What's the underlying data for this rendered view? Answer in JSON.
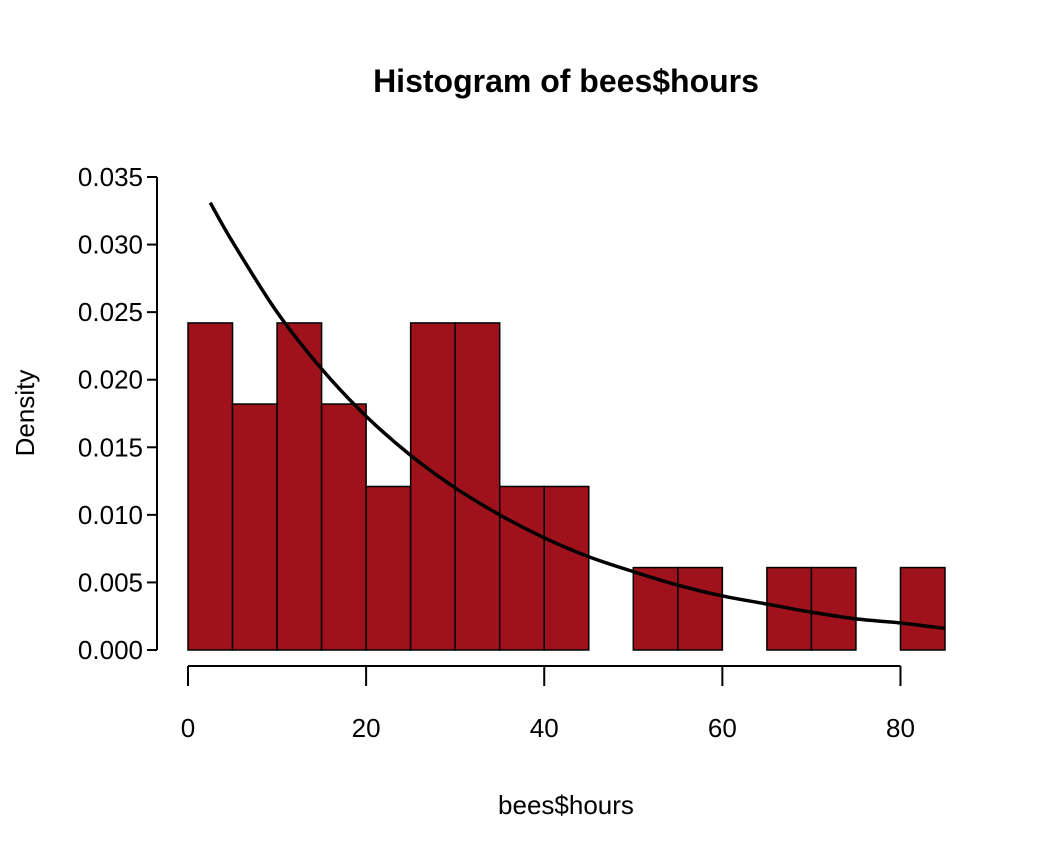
{
  "chart_data": {
    "type": "bar",
    "title": "Histogram of bees$hours",
    "xlabel": "bees$hours",
    "ylabel": "Density",
    "bar_color": "#a0121b",
    "bin_edges": [
      0,
      5,
      10,
      15,
      20,
      25,
      30,
      35,
      40,
      45,
      50,
      55,
      60,
      65,
      70,
      75,
      80,
      85
    ],
    "values": [
      0.0242,
      0.0182,
      0.0242,
      0.0182,
      0.0121,
      0.0242,
      0.0242,
      0.0121,
      0.0121,
      0,
      0.0061,
      0.0061,
      0,
      0.0061,
      0.0061,
      0,
      0.0061
    ],
    "xlim": [
      0,
      85
    ],
    "ylim": [
      0,
      0.035
    ],
    "x_ticks": [
      0,
      20,
      40,
      60,
      80
    ],
    "x_tick_labels": [
      "0",
      "20",
      "40",
      "60",
      "80"
    ],
    "y_ticks": [
      0,
      0.005,
      0.01,
      0.015,
      0.02,
      0.025,
      0.03,
      0.035
    ],
    "y_tick_labels": [
      "0.000",
      "0.005",
      "0.010",
      "0.015",
      "0.020",
      "0.025",
      "0.030",
      "0.035"
    ],
    "density_curve": {
      "type": "line",
      "x": [
        2.5,
        5,
        10,
        15,
        20,
        25,
        30,
        35,
        40,
        45,
        50,
        55,
        60,
        65,
        70,
        75,
        80,
        85
      ],
      "y": [
        0.0331,
        0.0302,
        0.025,
        0.0208,
        0.0173,
        0.0144,
        0.012,
        0.01,
        0.0083,
        0.0069,
        0.0058,
        0.0048,
        0.004,
        0.0034,
        0.0028,
        0.0023,
        0.002,
        0.0016
      ]
    },
    "grid": false
  }
}
